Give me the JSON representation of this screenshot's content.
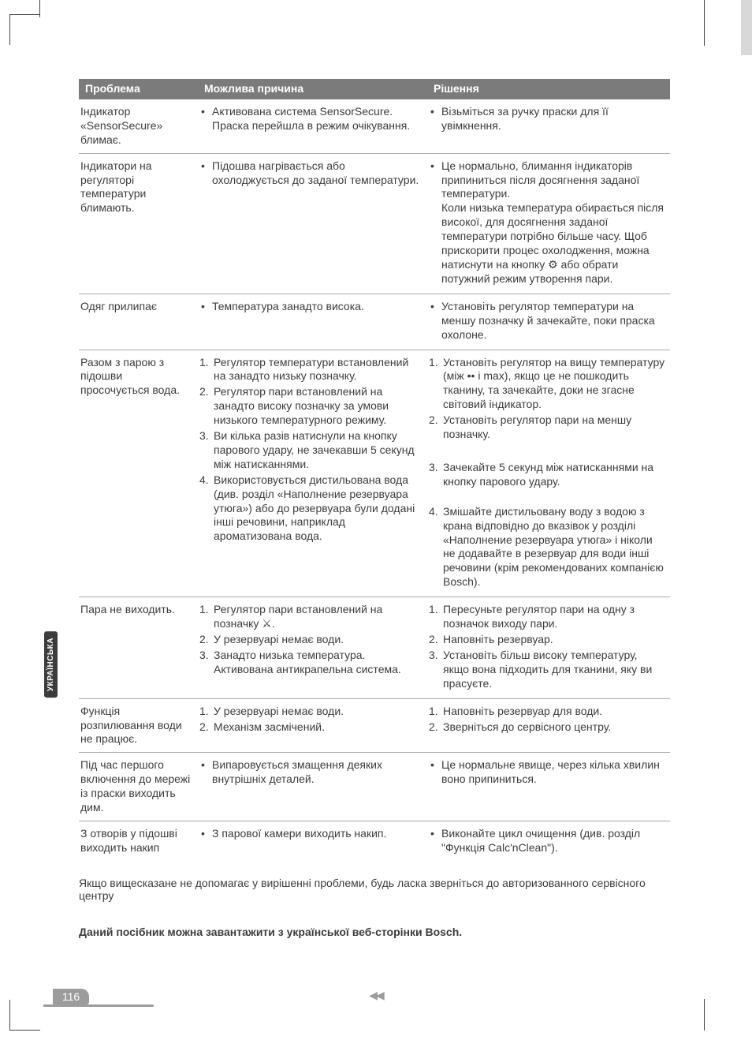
{
  "language_tab": "УКРАЇНСЬКА",
  "page_number": "116",
  "nav_arrows": "◀◀",
  "headers": {
    "problem": "Проблема",
    "cause": "Можлива причина",
    "solution": "Рішення"
  },
  "rows": [
    {
      "problem": "Індикатор «SensorSecure» блимає.",
      "cause_bullets": [
        "Активована система SensorSecure. Праска перейшла в режим очікування."
      ],
      "solution_bullets": [
        "Візьміться за ручку праски для її увімкнення."
      ]
    },
    {
      "problem": "Індикатори на регуляторі температури блимають.",
      "cause_bullets": [
        "Підошва нагрівається або охолоджується до заданої температури."
      ],
      "solution_bullets": [
        "Це нормально, блимання індикаторів припиниться після досягнення заданої температури.\nКоли низька температура обирається після високої, для досягнення заданої температури потрібно більше часу. Щоб прискорити процес охолодження, можна натиснути на кнопку ⚙ або обрати потужний режим утворення пари."
      ]
    },
    {
      "problem": "Одяг прилипає",
      "cause_bullets": [
        "Температура занадто висока."
      ],
      "solution_bullets": [
        "Установіть регулятор температури на меншу позначку й зачекайте, поки праска охолоне."
      ]
    },
    {
      "problem": "Разом з парою з підошви просочується вода.",
      "cause_numbered": [
        "Регулятор температури встановлений на занадто низьку позначку.",
        "Регулятор пари встановлений на занадто високу позначку за умови низького температурного режиму.",
        "Ви кілька разів натиснули на кнопку парового удару, не зачекавши 5 секунд між натисканнями.",
        "Використовується дистильована вода (див. розділ «Наполнение резервуара утюга») або до резервуара були додані інші речовини, наприклад ароматизована вода."
      ],
      "solution_numbered": [
        "Установіть регулятор на вищу температуру (між •• і max), якщо це не пошкодить тканину, та зачекайте, доки не згасне світовий індикатор.",
        "Установіть регулятор пари на меншу позначку.",
        "Зачекайте 5 секунд між натисканнями на кнопку парового удару.",
        "Змішайте дистильовану воду з водою з крана відповідно до вказівок у розділі «Наполнение резервуара утюга» і ніколи не додавайте в резервуар для води інші речовини (крім рекомендованих компанією Bosch)."
      ],
      "solution_spacing": [
        0,
        0,
        24,
        20
      ]
    },
    {
      "problem": "Пара не виходить.",
      "cause_numbered": [
        "Регулятор пари встановлений на позначку ⚔.",
        "У резервуарі немає води.",
        "Занадто низька температура. Активована антикрапельна система."
      ],
      "solution_numbered": [
        "Пересуньте регулятор пари на одну з позначок виходу пари.",
        "Наповніть резервуар.",
        "Установіть більш високу температуру, якщо вона підходить для тканини, яку ви прасуєте."
      ]
    },
    {
      "problem": "Функція розпилювання води не працює.",
      "cause_numbered": [
        "У резервуарі немає води.",
        "Механізм засмічений."
      ],
      "solution_numbered": [
        "Наповніть резервуар для води.",
        "Зверніться до сервісного центру."
      ]
    },
    {
      "problem": "Під час першого включення до мережі із праски виходить дим.",
      "cause_bullets": [
        "Випаровується змащення деяких внутрішніх деталей."
      ],
      "solution_bullets": [
        "Це нормальне явище, через кілька хвилин воно припиниться."
      ]
    },
    {
      "problem": "З отворів у підошві виходить накип",
      "cause_bullets": [
        "З парової камери виходить накип."
      ],
      "solution_bullets": [
        "Виконайте цикл очищення (див. розділ \"Функція Calc'nClean\")."
      ]
    }
  ],
  "footer_note": "Якщо вищесказане не допомагає у вирішенні проблеми, будь ласка зверніться до авторизованного сервісного центру",
  "bold_note": "Даний посібник можна завантажити з української веб-сторінки Bosch."
}
